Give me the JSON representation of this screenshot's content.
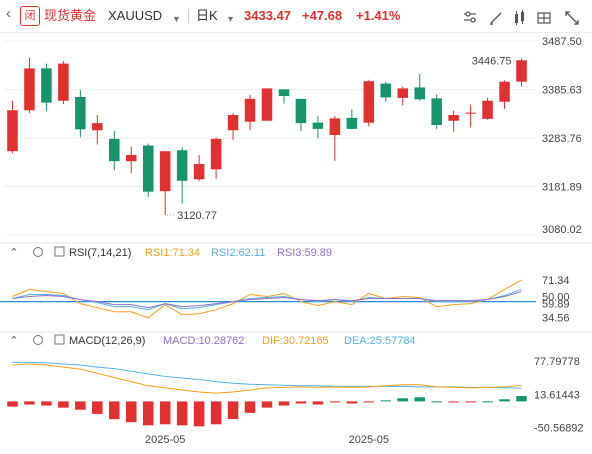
{
  "header": {
    "app_title": "现货黄金",
    "symbol": "XAUUSD",
    "period": "日K",
    "price": "3433.47",
    "change": "+47.68",
    "change_pct": "+1.41%",
    "logo_text": "闭",
    "colors": {
      "up": "#e03030",
      "down": "#16946c",
      "accent": "#f0a020"
    }
  },
  "chart_data": [
    {
      "type": "candlestick",
      "name": "price",
      "y_ticks": [
        "3487.50",
        "3385.63",
        "3283.76",
        "3181.89",
        "3080.02"
      ],
      "ylim": [
        3080.02,
        3487.5
      ],
      "x_labels": [
        "2025-05",
        "2025-05"
      ],
      "last_price_label": "3446.75",
      "low_label": "3120.77",
      "candles": [
        {
          "o": 3256,
          "h": 3362,
          "l": 3252,
          "c": 3342
        },
        {
          "o": 3342,
          "h": 3452,
          "l": 3336,
          "c": 3430
        },
        {
          "o": 3430,
          "h": 3440,
          "l": 3340,
          "c": 3358
        },
        {
          "o": 3362,
          "h": 3446,
          "l": 3355,
          "c": 3440
        },
        {
          "o": 3370,
          "h": 3385,
          "l": 3285,
          "c": 3302
        },
        {
          "o": 3300,
          "h": 3332,
          "l": 3270,
          "c": 3315
        },
        {
          "o": 3282,
          "h": 3298,
          "l": 3216,
          "c": 3235
        },
        {
          "o": 3235,
          "h": 3266,
          "l": 3210,
          "c": 3248
        },
        {
          "o": 3268,
          "h": 3272,
          "l": 3160,
          "c": 3171
        },
        {
          "o": 3172,
          "h": 3257,
          "l": 3122,
          "c": 3256
        },
        {
          "o": 3258,
          "h": 3264,
          "l": 3146,
          "c": 3194
        },
        {
          "o": 3197,
          "h": 3248,
          "l": 3193,
          "c": 3229
        },
        {
          "o": 3218,
          "h": 3285,
          "l": 3198,
          "c": 3282
        },
        {
          "o": 3300,
          "h": 3336,
          "l": 3280,
          "c": 3332
        },
        {
          "o": 3318,
          "h": 3374,
          "l": 3300,
          "c": 3366
        },
        {
          "o": 3320,
          "h": 3385,
          "l": 3320,
          "c": 3388
        },
        {
          "o": 3386,
          "h": 3386,
          "l": 3356,
          "c": 3372
        },
        {
          "o": 3366,
          "h": 3366,
          "l": 3298,
          "c": 3315
        },
        {
          "o": 3316,
          "h": 3330,
          "l": 3283,
          "c": 3303
        },
        {
          "o": 3290,
          "h": 3330,
          "l": 3236,
          "c": 3325
        },
        {
          "o": 3326,
          "h": 3344,
          "l": 3302,
          "c": 3303
        },
        {
          "o": 3316,
          "h": 3406,
          "l": 3308,
          "c": 3403
        },
        {
          "o": 3398,
          "h": 3402,
          "l": 3360,
          "c": 3369
        },
        {
          "o": 3368,
          "h": 3392,
          "l": 3352,
          "c": 3388
        },
        {
          "o": 3390,
          "h": 3418,
          "l": 3362,
          "c": 3365
        },
        {
          "o": 3367,
          "h": 3375,
          "l": 3303,
          "c": 3311
        },
        {
          "o": 3320,
          "h": 3341,
          "l": 3297,
          "c": 3332
        },
        {
          "o": 3336,
          "h": 3354,
          "l": 3306,
          "c": 3337
        },
        {
          "o": 3324,
          "h": 3368,
          "l": 3322,
          "c": 3362
        },
        {
          "o": 3360,
          "h": 3405,
          "l": 3345,
          "c": 3402
        },
        {
          "o": 3402,
          "h": 3451,
          "l": 3392,
          "c": 3447
        }
      ]
    },
    {
      "type": "line",
      "name": "RSI",
      "title": "RSI(7,14,21)",
      "legend": [
        "RSI1:71.34",
        "RSI2:62.11",
        "RSI3:59.89"
      ],
      "y_ticks": [
        "71.34",
        "50.00",
        "34.56"
      ],
      "y_tick_overlap_label": "59.89",
      "ylim": [
        22,
        90
      ],
      "level": 50,
      "series": [
        {
          "values": [
            55,
            62,
            60,
            58,
            48,
            44,
            40,
            40,
            34,
            47,
            37,
            38,
            42,
            48,
            57,
            55,
            58,
            50,
            46,
            50,
            47,
            58,
            53,
            55,
            54,
            45,
            47,
            48,
            52,
            62,
            71.34
          ],
          "color": "#f0a020"
        },
        {
          "values": [
            53,
            57,
            57,
            56,
            52,
            49,
            45,
            45,
            42,
            48,
            43,
            44,
            47,
            50,
            53,
            54,
            55,
            52,
            50,
            52,
            50,
            54,
            53,
            53,
            53,
            50,
            50,
            50,
            52,
            56,
            62.11
          ],
          "color": "#5ab0d8"
        },
        {
          "values": [
            53,
            55,
            56,
            55,
            52,
            50,
            47,
            47,
            44,
            48,
            45,
            46,
            48,
            50,
            52,
            53,
            54,
            52,
            51,
            52,
            51,
            53,
            53,
            53,
            53,
            51,
            51,
            51,
            52,
            55,
            59.89
          ],
          "color": "#9070cc"
        }
      ]
    },
    {
      "type": "macd",
      "name": "MACD",
      "title": "MACD(12,26,9)",
      "legend": [
        "MACD:10.28762",
        "DIF:30.72165",
        "DEA:25.57784"
      ],
      "y_ticks": [
        "77.79778",
        "13.61443",
        "-50.56892"
      ],
      "ylim": [
        -55,
        95
      ],
      "series": [
        {
          "values": [
            75,
            75,
            74,
            72,
            70,
            66,
            63,
            58,
            53,
            48,
            45,
            42,
            38,
            35,
            33,
            32,
            31,
            30,
            30,
            29,
            29,
            29,
            29,
            29,
            28,
            28,
            28,
            27,
            27,
            26,
            25.58
          ],
          "color": "#5ab0d8"
        },
        {
          "values": [
            70,
            72,
            70,
            66,
            62,
            54,
            46,
            38,
            30,
            26,
            22,
            18,
            16,
            18,
            22,
            26,
            27,
            28,
            27,
            28,
            27,
            28,
            30,
            32,
            32,
            28,
            27,
            26,
            27,
            28,
            30.72
          ],
          "color": "#f0a020"
        }
      ],
      "histogram": [
        -10,
        -6,
        -8,
        -12,
        -16,
        -24,
        -34,
        -40,
        -46,
        -44,
        -46,
        -48,
        -44,
        -34,
        -22,
        -12,
        -8,
        -4,
        -6,
        -2,
        -4,
        -2,
        2,
        6,
        8,
        0,
        -2,
        -2,
        0,
        4,
        10.29
      ]
    }
  ]
}
